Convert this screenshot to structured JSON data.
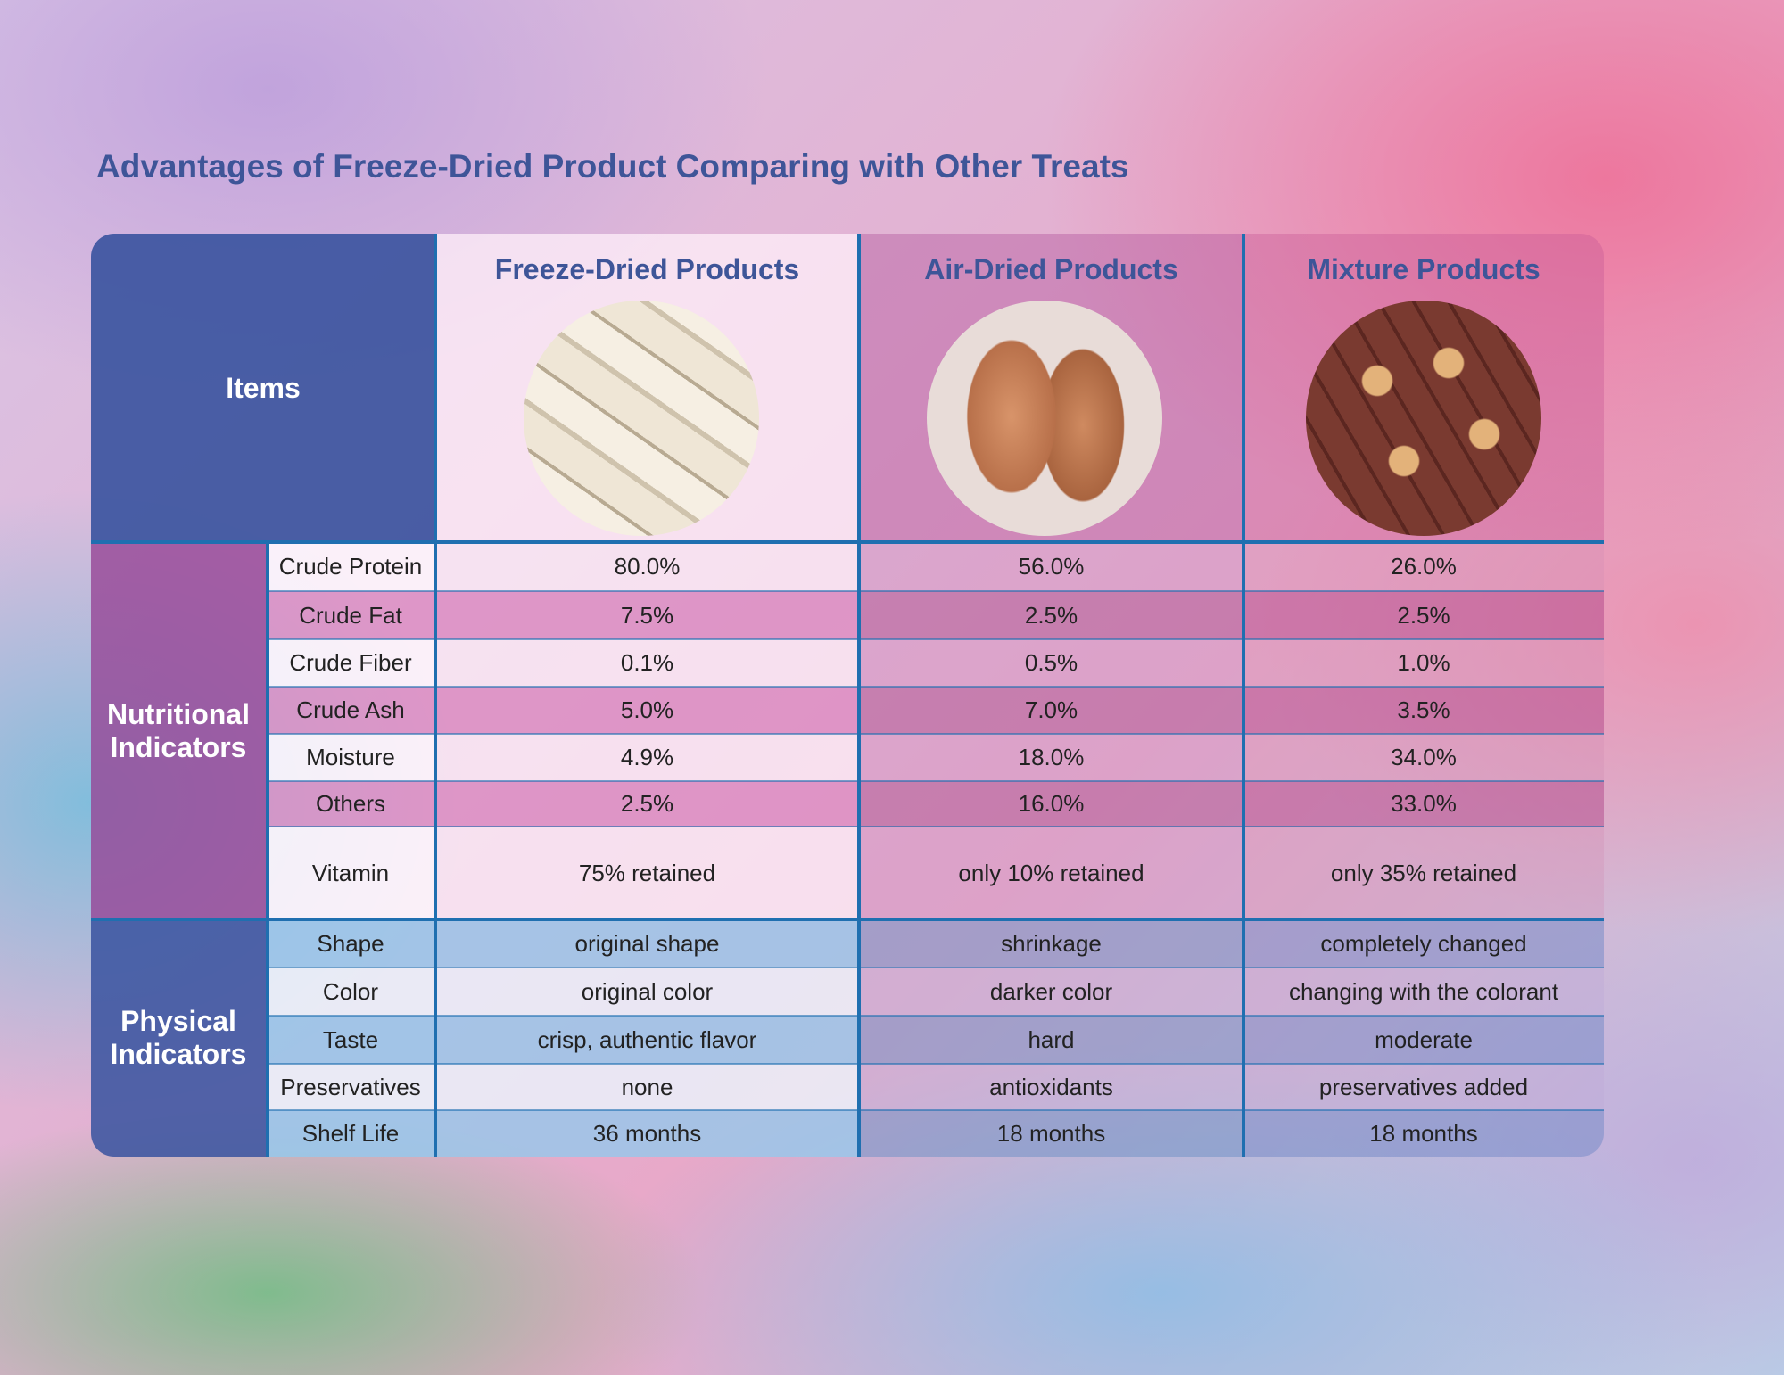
{
  "title": "Advantages of Freeze-Dried Product Comparing with Other Treats",
  "header": {
    "items": "Items",
    "columns": [
      "Freeze-Dried Products",
      "Air-Dried Products",
      "Mixture Products"
    ]
  },
  "nutritional": {
    "label": "Nutritional Indicators",
    "rows": [
      {
        "name": "Crude Protein",
        "values": [
          "80.0%",
          "56.0%",
          "26.0%"
        ]
      },
      {
        "name": "Crude Fat",
        "values": [
          "7.5%",
          "2.5%",
          "2.5%"
        ]
      },
      {
        "name": "Crude Fiber",
        "values": [
          "0.1%",
          "0.5%",
          "1.0%"
        ]
      },
      {
        "name": "Crude Ash",
        "values": [
          "5.0%",
          "7.0%",
          "3.5%"
        ]
      },
      {
        "name": "Moisture",
        "values": [
          "4.9%",
          "18.0%",
          "34.0%"
        ]
      },
      {
        "name": "Others",
        "values": [
          "2.5%",
          "16.0%",
          "33.0%"
        ]
      },
      {
        "name": "Vitamin",
        "values": [
          "75% retained",
          "only 10% retained",
          "only 35% retained"
        ]
      }
    ]
  },
  "physical": {
    "label": "Physical Indicators",
    "rows": [
      {
        "name": "Shape",
        "values": [
          "original shape",
          "shrinkage",
          "completely changed"
        ]
      },
      {
        "name": "Color",
        "values": [
          "original color",
          "darker color",
          "changing with the colorant"
        ]
      },
      {
        "name": "Taste",
        "values": [
          "crisp, authentic flavor",
          "hard",
          "moderate"
        ]
      },
      {
        "name": "Preservatives",
        "values": [
          "none",
          "antioxidants",
          "preservatives added"
        ]
      },
      {
        "name": "Shelf Life",
        "values": [
          "36 months",
          "18 months",
          "18 months"
        ]
      }
    ]
  }
}
